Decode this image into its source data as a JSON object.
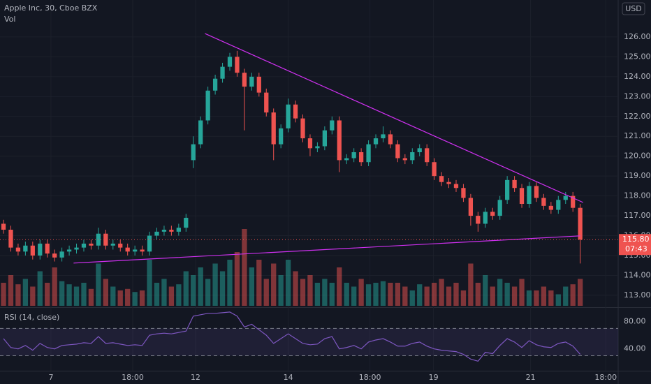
{
  "chart_data": {
    "type": "candlestick",
    "title": "Apple Inc, 30, Cboe BZX",
    "volume_label": "Vol",
    "currency": "USD",
    "open": [
      116.6,
      116.3,
      115.4,
      115.2,
      115.5,
      115.0,
      115.6,
      115.1,
      114.9,
      115.2,
      115.3,
      115.4,
      115.6,
      115.5,
      116.1,
      115.5,
      115.6,
      115.4,
      115.2,
      115.3,
      115.2,
      116.0,
      116.2,
      116.3,
      116.2,
      116.4,
      119.8,
      120.6,
      121.8,
      123.3,
      123.9,
      124.5,
      125.0,
      124.2,
      123.5,
      124.0,
      123.2,
      122.2,
      120.6,
      121.4,
      122.6,
      121.9,
      120.9,
      120.4,
      120.5,
      121.3,
      121.8,
      119.8,
      119.9,
      120.2,
      119.7,
      120.6,
      120.9,
      121.1,
      120.6,
      119.9,
      119.8,
      120.2,
      120.4,
      119.7,
      119.0,
      118.7,
      118.6,
      118.4,
      117.9,
      117.0,
      116.6,
      117.2,
      117.0,
      117.8,
      118.8,
      118.4,
      117.6,
      118.5,
      117.9,
      117.5,
      117.3,
      117.8,
      118.0,
      117.4
    ],
    "high": [
      116.8,
      116.5,
      115.6,
      115.7,
      115.7,
      115.8,
      115.8,
      115.3,
      115.4,
      115.5,
      115.6,
      115.8,
      115.8,
      116.4,
      116.3,
      115.8,
      115.8,
      115.6,
      115.5,
      115.5,
      116.2,
      116.4,
      116.5,
      116.5,
      116.6,
      117.1,
      121.0,
      122.0,
      123.5,
      124.1,
      124.7,
      125.2,
      125.3,
      124.4,
      124.2,
      124.2,
      123.4,
      122.4,
      121.6,
      122.9,
      122.8,
      122.1,
      121.1,
      120.7,
      121.5,
      122.0,
      122.0,
      120.1,
      120.4,
      120.4,
      120.8,
      121.1,
      121.5,
      121.3,
      120.8,
      120.1,
      120.4,
      120.6,
      120.6,
      119.9,
      119.2,
      118.9,
      118.8,
      118.6,
      118.1,
      117.2,
      117.4,
      117.4,
      118.0,
      119.0,
      119.0,
      118.6,
      118.7,
      118.7,
      118.1,
      117.7,
      118.0,
      118.2,
      118.2,
      117.6
    ],
    "low": [
      116.1,
      115.2,
      115.0,
      115.0,
      114.8,
      114.8,
      114.9,
      114.7,
      114.7,
      115.0,
      115.1,
      115.2,
      115.3,
      115.3,
      115.3,
      115.3,
      115.2,
      115.0,
      115.0,
      115.0,
      115.0,
      115.8,
      116.0,
      116.0,
      116.0,
      116.2,
      119.4,
      120.4,
      121.6,
      123.1,
      123.7,
      124.3,
      124.0,
      121.3,
      123.3,
      123.0,
      122.0,
      119.8,
      120.4,
      121.2,
      121.7,
      120.7,
      120.0,
      120.2,
      120.3,
      121.1,
      119.2,
      119.6,
      119.7,
      119.5,
      119.5,
      120.4,
      120.7,
      120.4,
      119.7,
      119.6,
      119.6,
      120.0,
      119.5,
      118.8,
      118.5,
      118.4,
      118.2,
      117.7,
      116.5,
      116.2,
      116.4,
      116.8,
      116.8,
      117.6,
      118.2,
      117.4,
      117.4,
      117.7,
      117.3,
      117.1,
      117.1,
      117.6,
      117.2,
      114.6
    ],
    "close": [
      116.3,
      115.4,
      115.2,
      115.5,
      115.0,
      115.6,
      115.1,
      114.9,
      115.2,
      115.3,
      115.4,
      115.6,
      115.5,
      116.1,
      115.5,
      115.6,
      115.4,
      115.2,
      115.3,
      115.2,
      116.0,
      116.2,
      116.3,
      116.2,
      116.4,
      116.9,
      120.6,
      121.8,
      123.3,
      123.9,
      124.5,
      125.0,
      124.2,
      123.5,
      124.0,
      123.2,
      122.2,
      120.6,
      121.4,
      122.6,
      121.9,
      120.9,
      120.4,
      120.5,
      121.3,
      121.8,
      119.8,
      119.9,
      120.2,
      119.7,
      120.6,
      120.9,
      121.1,
      120.6,
      119.9,
      119.8,
      120.2,
      120.4,
      119.7,
      119.0,
      118.7,
      118.6,
      118.4,
      117.9,
      117.0,
      116.6,
      117.2,
      117.0,
      117.8,
      118.8,
      118.4,
      117.6,
      118.5,
      117.9,
      117.5,
      117.3,
      117.8,
      118.0,
      117.4,
      115.8
    ],
    "volume": [
      30,
      40,
      28,
      35,
      25,
      45,
      30,
      50,
      32,
      28,
      25,
      30,
      22,
      55,
      35,
      25,
      20,
      22,
      18,
      20,
      60,
      30,
      35,
      25,
      28,
      45,
      40,
      50,
      35,
      55,
      45,
      60,
      70,
      100,
      50,
      60,
      35,
      55,
      40,
      60,
      45,
      35,
      40,
      30,
      35,
      30,
      50,
      30,
      25,
      35,
      28,
      30,
      32,
      30,
      30,
      25,
      20,
      28,
      25,
      30,
      35,
      25,
      30,
      20,
      55,
      30,
      40,
      25,
      35,
      30,
      25,
      35,
      20,
      20,
      25,
      20,
      15,
      25,
      28,
      35
    ],
    "up_color": "#26a69a",
    "down_color": "#ef5350",
    "grid": true,
    "xlim": [
      -0.48,
      84.2
    ],
    "xticks": [
      {
        "value": 6.5,
        "label": "7"
      },
      {
        "value": 17.7,
        "label": "18:00"
      },
      {
        "value": 26.3,
        "label": "12"
      },
      {
        "value": 39,
        "label": "14"
      },
      {
        "value": 50.2,
        "label": "18:00"
      },
      {
        "value": 58.9,
        "label": "19"
      },
      {
        "value": 72.2,
        "label": "21"
      },
      {
        "value": 82.5,
        "label": "18:00"
      }
    ],
    "ylim": [
      112.4,
      127.86
    ],
    "yticks": [
      {
        "value": 113,
        "label": "113.00"
      },
      {
        "value": 114,
        "label": "114.00"
      },
      {
        "value": 115,
        "label": "115.00"
      },
      {
        "value": 116,
        "label": "116.00"
      },
      {
        "value": 117,
        "label": "117.00"
      },
      {
        "value": 118,
        "label": "118.00"
      },
      {
        "value": 119,
        "label": "119.00"
      },
      {
        "value": 120,
        "label": "120.00"
      },
      {
        "value": 121,
        "label": "121.00"
      },
      {
        "value": 122,
        "label": "122.00"
      },
      {
        "value": 123,
        "label": "123.00"
      },
      {
        "value": 124,
        "label": "124.00"
      },
      {
        "value": 125,
        "label": "125.00"
      },
      {
        "value": 126,
        "label": "126.00"
      }
    ],
    "last_price": {
      "value": 115.8,
      "label": "115.80"
    },
    "countdown": "07:43",
    "trendlines": [
      {
        "color": "#cf30f0",
        "x": [
          27.6,
          79.4
        ],
        "y": [
          126.17,
          117.67
        ]
      },
      {
        "color": "#cf30f0",
        "x": [
          9.6,
          79
        ],
        "y": [
          114.62,
          115.99
        ]
      }
    ],
    "rsi": {
      "label": "RSI (14, close)",
      "color": "#7e57c2",
      "values": [
        55,
        42,
        40,
        45,
        38,
        48,
        42,
        40,
        45,
        46,
        47,
        49,
        48,
        58,
        48,
        49,
        47,
        45,
        46,
        45,
        60,
        62,
        63,
        62,
        64,
        66,
        88,
        90,
        92,
        92,
        93,
        94,
        88,
        72,
        76,
        68,
        60,
        48,
        55,
        62,
        55,
        48,
        46,
        47,
        55,
        58,
        40,
        42,
        45,
        40,
        50,
        53,
        55,
        50,
        44,
        44,
        48,
        50,
        44,
        40,
        38,
        37,
        36,
        32,
        25,
        22,
        35,
        33,
        45,
        55,
        50,
        42,
        52,
        46,
        43,
        42,
        48,
        50,
        44,
        32
      ],
      "ylim": [
        8,
        100
      ],
      "yticks": [
        {
          "value": 80,
          "label": "80.00"
        },
        {
          "value": 40,
          "label": "40.00"
        }
      ],
      "bands": [
        30,
        70
      ]
    }
  }
}
